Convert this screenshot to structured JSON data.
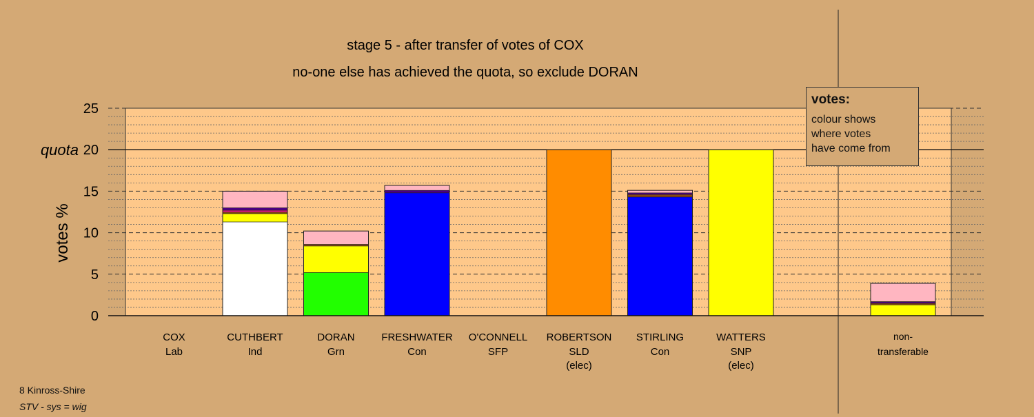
{
  "chart_data": {
    "type": "bar",
    "stacked": true,
    "title": "stage 5 - after transfer of votes of COX",
    "subtitle": "no-one else has achieved the quota, so exclude DORAN",
    "ylabel": "votes %",
    "ylim": [
      0,
      25
    ],
    "yticks": [
      0,
      5,
      10,
      15,
      20,
      25
    ],
    "quota": 20,
    "quota_label": "quota",
    "grid": true,
    "candidates": [
      {
        "name": "COX",
        "party": "Lab",
        "status": "",
        "segments": []
      },
      {
        "name": "CUTHBERT",
        "party": "Ind",
        "status": "",
        "segments": [
          {
            "color": "#ffffff",
            "value": 11.3
          },
          {
            "color": "#ffff00",
            "value": 1.0
          },
          {
            "color": "#8b4513",
            "value": 0.2
          },
          {
            "color": "#ff1493",
            "value": 0.2
          },
          {
            "color": "#4b0082",
            "value": 0.3
          },
          {
            "color": "#ffb6c1",
            "value": 2.0
          }
        ]
      },
      {
        "name": "DORAN",
        "party": "Grn",
        "status": "",
        "segments": [
          {
            "color": "#22ff00",
            "value": 5.2
          },
          {
            "color": "#ffff00",
            "value": 3.2
          },
          {
            "color": "#8b4513",
            "value": 0.2
          },
          {
            "color": "#ffb6c1",
            "value": 1.6
          }
        ]
      },
      {
        "name": "FRESHWATER",
        "party": "Con",
        "status": "",
        "segments": [
          {
            "color": "#0000ff",
            "value": 14.8
          },
          {
            "color": "#4b0082",
            "value": 0.3
          },
          {
            "color": "#ffb6c1",
            "value": 0.6
          }
        ]
      },
      {
        "name": "O'CONNELL",
        "party": "SFP",
        "status": "",
        "segments": []
      },
      {
        "name": "ROBERTSON",
        "party": "SLD",
        "status": "(elec)",
        "segments": [
          {
            "color": "#ff8c00",
            "value": 20.0
          }
        ]
      },
      {
        "name": "STIRLING",
        "party": "Con",
        "status": "",
        "segments": [
          {
            "color": "#0000ff",
            "value": 14.3
          },
          {
            "color": "#8b4513",
            "value": 0.3
          },
          {
            "color": "#4b0082",
            "value": 0.2
          },
          {
            "color": "#ffb6c1",
            "value": 0.3
          }
        ]
      },
      {
        "name": "WATTERS",
        "party": "SNP",
        "status": "(elec)",
        "segments": [
          {
            "color": "#ffff00",
            "value": 20.0
          }
        ]
      }
    ],
    "nontransferable": {
      "label_line1": "non-",
      "label_line2": "transferable",
      "segments": [
        {
          "color": "#ffff00",
          "value": 1.3
        },
        {
          "color": "#8b4513",
          "value": 0.2
        },
        {
          "color": "#4b0082",
          "value": 0.2
        },
        {
          "color": "#ffb6c1",
          "value": 2.2
        }
      ]
    },
    "colors": {
      "background": "#d4a975",
      "plot_area": "#fec88a",
      "gridline": "#333333",
      "bar_outline": "#222222"
    }
  },
  "legend": {
    "title": "votes:",
    "line1": "colour shows",
    "line2": "where votes",
    "line3": "have come from"
  },
  "footer": {
    "place": "8 Kinross-Shire",
    "system": "STV - sys = wig"
  }
}
